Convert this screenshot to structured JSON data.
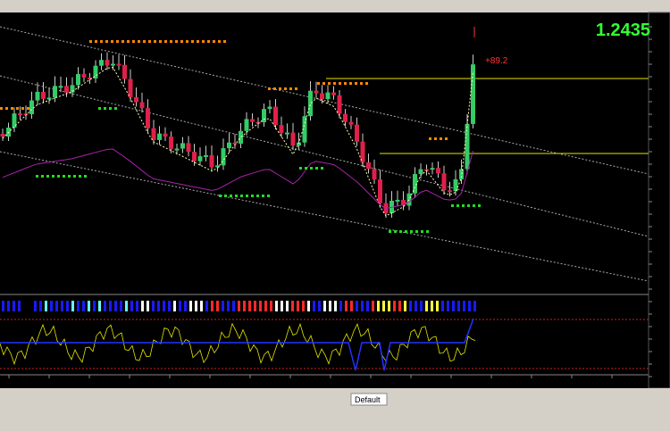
{
  "price": {
    "value": "1.2435",
    "change": "+89.2"
  },
  "tabs": [
    "Default"
  ]
}
